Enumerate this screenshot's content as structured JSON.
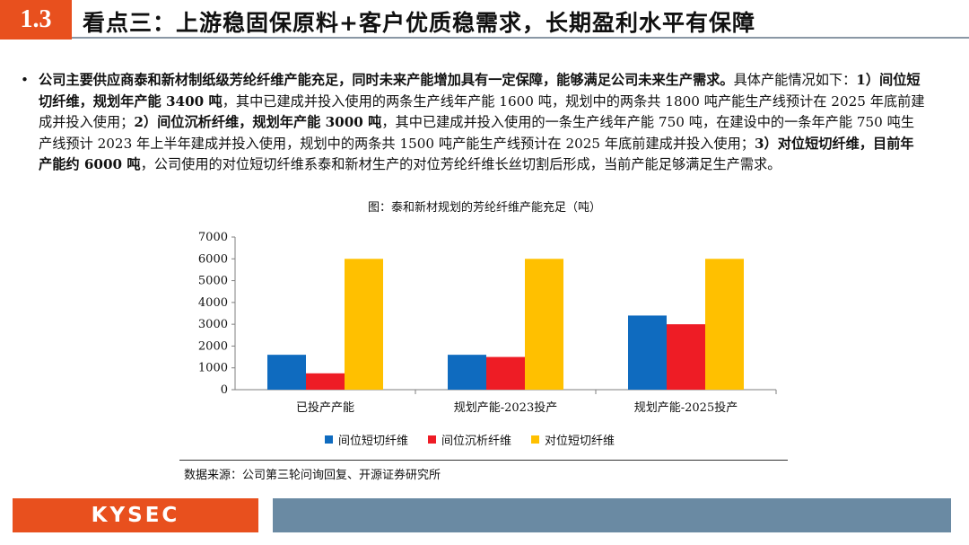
{
  "header": {
    "section_number": "1.3",
    "title": "看点三：上游稳固保原料+客户优质稳需求，长期盈利水平有保障"
  },
  "bullet": {
    "segments": [
      {
        "text": "公司主要供应商泰和新材制纸级芳纶纤维产能充足，同时未来产能增加具有一定保障，能够满足公司未来生产需求。",
        "bold": true
      },
      {
        "text": "具体产能情况如下：",
        "bold": false
      },
      {
        "text": "1）间位短切纤维，规划年产能 3400 吨",
        "bold": true
      },
      {
        "text": "，其中已建成并投入使用的两条生产线年产能 1600 吨，规划中的两条共 1800 吨产能生产线预计在 2025 年底前建成并投入使用；",
        "bold": false
      },
      {
        "text": "2）间位沉析纤维，规划年产能 3000 吨",
        "bold": true
      },
      {
        "text": "，其中已建成并投入使用的一条生产线年产能 750 吨，在建设中的一条年产能 750 吨生产线预计 2023 年上半年建成并投入使用，规划中的两条共 1500 吨产能生产线预计在 2025 年底前建成并投入使用；",
        "bold": false
      },
      {
        "text": "3）对位短切纤维，目前年产能约 6000 吨",
        "bold": true
      },
      {
        "text": "，公司使用的对位短切纤维系泰和新材生产的对位芳纶纤维长丝切割后形成，当前产能足够满足生产需求。",
        "bold": false
      }
    ]
  },
  "chart_data": {
    "type": "bar",
    "title": "图：泰和新材规划的芳纶纤维产能充足（吨）",
    "categories": [
      "已投产产能",
      "规划产能-2023投产",
      "规划产能-2025投产"
    ],
    "series": [
      {
        "name": "间位短切纤维",
        "color": "#0f6bbf",
        "values": [
          1600,
          1600,
          3400
        ]
      },
      {
        "name": "间位沉析纤维",
        "color": "#ee1c25",
        "values": [
          750,
          1500,
          3000
        ]
      },
      {
        "name": "对位短切纤维",
        "color": "#ffc000",
        "values": [
          6000,
          6000,
          6000
        ]
      }
    ],
    "yticks": [
      "0",
      "1000",
      "2000",
      "3000",
      "4000",
      "5000",
      "6000",
      "7000"
    ],
    "ylim": [
      0,
      7000
    ],
    "grid": false,
    "legend_position": "bottom"
  },
  "source": "数据来源：公司第三轮问询回复、开源证券研究所",
  "footer": {
    "logo_text": "KYSEC"
  }
}
